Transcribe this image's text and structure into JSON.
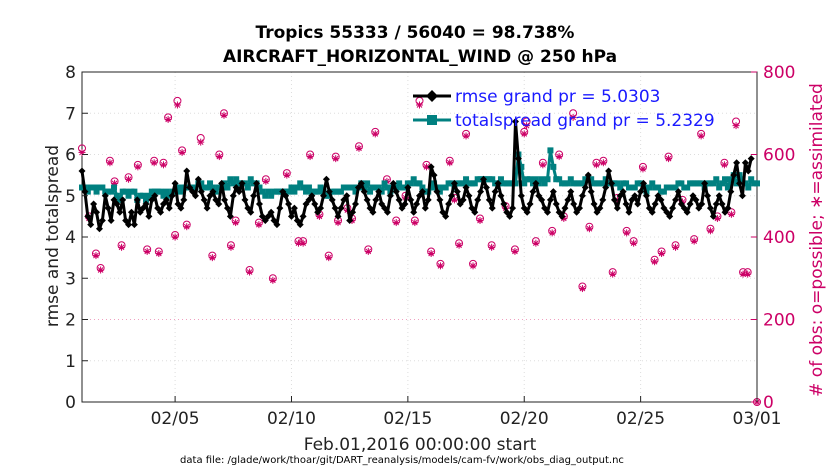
{
  "chart_data": {
    "type": "line",
    "title": "Tropics 55333 / 56040 = 98.738%",
    "subtitle": "AIRCRAFT_HORIZONTAL_WIND @ 250 hPa",
    "xlabel": "Feb.01,2016 00:00:00 start",
    "ylabel_left": "rmse and totalspread",
    "ylabel_right": "# of obs: o=possible; ∗=assimilated",
    "footer": "data file: /glade/work/thoar/git/DART_reanalysis/models/cam-fv/work/obs_diag_output.nc",
    "x_range_days": [
      1,
      30
    ],
    "xticks": [
      {
        "day": 5,
        "label": "02/05"
      },
      {
        "day": 10,
        "label": "02/10"
      },
      {
        "day": 15,
        "label": "02/15"
      },
      {
        "day": 20,
        "label": "02/20"
      },
      {
        "day": 25,
        "label": "02/25"
      },
      {
        "day": 30,
        "label": "03/01"
      }
    ],
    "ylim_left": [
      0,
      8
    ],
    "yticks_left": [
      "0",
      "1",
      "2",
      "3",
      "4",
      "5",
      "6",
      "7",
      "8"
    ],
    "ylim_right": [
      0,
      800
    ],
    "yticks_right": [
      "0",
      "200",
      "400",
      "600",
      "800"
    ],
    "grid": true,
    "legend": [
      {
        "label": "rmse grand pr = 5.0303",
        "color": "#000000",
        "marker": "diamond"
      },
      {
        "label": "totalspread grand pr = 5.2329",
        "color": "#008080",
        "marker": "square"
      }
    ],
    "series": [
      {
        "name": "rmse",
        "color": "#000000",
        "axis": "left",
        "x_start": 1,
        "step": 0.125,
        "values": [
          5.6,
          5.1,
          4.5,
          4.3,
          4.8,
          4.6,
          4.2,
          4.4,
          5.0,
          4.7,
          4.4,
          4.9,
          4.8,
          4.6,
          4.9,
          4.4,
          4.3,
          4.6,
          4.3,
          4.9,
          4.6,
          4.7,
          4.8,
          4.5,
          4.9,
          5.0,
          4.7,
          4.6,
          4.8,
          4.9,
          4.7,
          5.0,
          5.3,
          4.8,
          4.7,
          4.9,
          5.6,
          5.2,
          5.1,
          5.0,
          5.4,
          5.1,
          4.9,
          4.7,
          5.0,
          5.1,
          4.9,
          4.8,
          5.3,
          4.9,
          4.7,
          4.5,
          5.0,
          5.2,
          5.1,
          5.3,
          4.9,
          4.7,
          4.6,
          5.0,
          5.3,
          4.8,
          4.5,
          4.4,
          4.5,
          4.6,
          4.4,
          4.3,
          4.7,
          5.1,
          5.0,
          4.8,
          4.5,
          4.7,
          4.4,
          4.3,
          4.5,
          4.8,
          4.9,
          5.0,
          4.8,
          4.6,
          4.7,
          5.0,
          5.4,
          5.1,
          4.9,
          4.7,
          4.5,
          4.7,
          4.9,
          5.0,
          4.4,
          4.6,
          4.8,
          5.2,
          5.3,
          5.1,
          4.9,
          4.7,
          4.6,
          4.9,
          5.1,
          4.8,
          4.7,
          4.6,
          5.0,
          5.3,
          5.1,
          4.9,
          4.7,
          4.8,
          5.2,
          4.9,
          4.6,
          4.8,
          5.0,
          5.1,
          4.7,
          4.9,
          5.7,
          5.5,
          5.1,
          4.9,
          4.6,
          4.5,
          4.8,
          5.0,
          5.3,
          5.1,
          4.8,
          4.9,
          5.2,
          5.0,
          4.7,
          4.6,
          4.9,
          5.1,
          5.4,
          5.2,
          4.9,
          4.7,
          5.1,
          5.3,
          5.0,
          4.8,
          4.6,
          4.5,
          4.7,
          6.8,
          5.9,
          5.0,
          4.7,
          4.6,
          4.8,
          5.1,
          5.3,
          5.0,
          4.9,
          4.7,
          4.6,
          4.9,
          5.1,
          4.8,
          4.6,
          4.5,
          4.7,
          4.9,
          5.1,
          4.8,
          4.6,
          4.7,
          5.0,
          5.2,
          5.5,
          5.1,
          4.8,
          4.6,
          4.7,
          4.9,
          5.2,
          5.6,
          5.3,
          4.9,
          4.7,
          5.0,
          5.1,
          4.8,
          4.6,
          4.9,
          5.0,
          4.8,
          5.1,
          5.3,
          5.0,
          4.7,
          4.6,
          4.8,
          5.0,
          4.9,
          4.7,
          4.6,
          4.5,
          4.7,
          4.9,
          5.1,
          4.8,
          4.7,
          4.6,
          4.8,
          5.0,
          4.9,
          4.7,
          4.8,
          5.3,
          5.0,
          4.7,
          4.5,
          4.8,
          5.0,
          4.8,
          4.6,
          4.7,
          5.1,
          5.5,
          5.8,
          5.3,
          5.0,
          5.8,
          5.6,
          5.9
        ]
      },
      {
        "name": "totalspread",
        "color": "#008080",
        "axis": "left",
        "x_start": 1,
        "step": 0.125,
        "values": [
          5.2,
          5.2,
          5.1,
          5.2,
          5.2,
          5.1,
          5.2,
          5.2,
          5.1,
          5.1,
          5.1,
          5.2,
          5.0,
          4.9,
          5.1,
          5.1,
          5.0,
          5.1,
          5.1,
          4.9,
          5.0,
          5.0,
          4.9,
          5.0,
          5.1,
          5.1,
          5.1,
          5.1,
          5.0,
          5.1,
          5.0,
          5.1,
          5.1,
          5.2,
          5.1,
          5.2,
          5.2,
          5.2,
          5.2,
          5.2,
          5.3,
          5.3,
          5.2,
          5.2,
          5.3,
          5.2,
          5.1,
          5.2,
          5.2,
          5.3,
          5.2,
          5.4,
          5.3,
          5.4,
          5.3,
          5.3,
          5.3,
          5.2,
          5.4,
          5.3,
          5.3,
          5.2,
          5.1,
          5.0,
          5.1,
          5.0,
          5.1,
          5.1,
          5.1,
          5.1,
          5.1,
          5.1,
          5.2,
          5.1,
          5.2,
          5.3,
          5.2,
          5.1,
          5.2,
          5.1,
          5.1,
          5.1,
          5.2,
          5.1,
          5.0,
          5.0,
          5.1,
          5.1,
          5.1,
          5.1,
          5.2,
          5.2,
          5.2,
          5.2,
          5.1,
          5.2,
          5.3,
          5.2,
          5.3,
          5.1,
          5.2,
          5.2,
          5.2,
          5.1,
          5.3,
          5.2,
          5.1,
          5.2,
          5.2,
          5.3,
          5.2,
          5.2,
          5.3,
          5.3,
          5.4,
          5.3,
          5.3,
          5.2,
          5.1,
          5.1,
          5.2,
          5.3,
          5.2,
          5.1,
          5.2,
          5.2,
          5.3,
          5.3,
          5.2,
          5.3,
          5.3,
          5.3,
          5.4,
          5.3,
          5.3,
          5.3,
          5.4,
          5.4,
          5.4,
          5.4,
          5.4,
          5.4,
          5.3,
          5.3,
          5.4,
          5.3,
          5.3,
          5.3,
          5.3,
          5.3,
          6.0,
          5.7,
          5.3,
          5.4,
          5.4,
          5.3,
          5.4,
          5.3,
          5.4,
          5.3,
          5.4,
          6.1,
          5.7,
          5.4,
          5.4,
          5.3,
          5.3,
          5.3,
          5.4,
          5.3,
          5.3,
          5.3,
          5.3,
          5.4,
          5.4,
          5.4,
          5.3,
          5.3,
          5.3,
          5.3,
          5.4,
          5.3,
          5.3,
          5.3,
          5.3,
          5.2,
          5.3,
          5.3,
          5.2,
          5.2,
          5.2,
          5.3,
          5.3,
          5.2,
          5.1,
          5.2,
          5.3,
          5.2,
          5.2,
          5.1,
          5.1,
          5.2,
          5.2,
          5.2,
          5.2,
          5.3,
          5.3,
          5.2,
          5.2,
          5.3,
          5.3,
          5.3,
          5.3,
          5.3,
          5.2,
          5.3,
          5.3,
          5.3,
          5.4,
          5.2,
          5.3,
          5.4,
          5.2,
          5.4,
          5.5,
          5.3,
          5.5,
          5.4,
          5.3,
          5.2,
          5.4,
          5.3,
          5.3
        ]
      },
      {
        "name": "obs_possible",
        "color": "#cc0066",
        "axis": "right",
        "marker": "o",
        "points": [
          [
            1.0,
            615
          ],
          [
            1.3,
            450
          ],
          [
            1.6,
            360
          ],
          [
            1.8,
            325
          ],
          [
            2.2,
            585
          ],
          [
            2.4,
            535
          ],
          [
            2.7,
            380
          ],
          [
            3.0,
            545
          ],
          [
            3.4,
            575
          ],
          [
            3.8,
            370
          ],
          [
            4.1,
            585
          ],
          [
            4.3,
            365
          ],
          [
            4.5,
            580
          ],
          [
            4.7,
            690
          ],
          [
            5.0,
            405
          ],
          [
            5.1,
            730
          ],
          [
            5.3,
            610
          ],
          [
            5.5,
            430
          ],
          [
            6.1,
            640
          ],
          [
            6.6,
            355
          ],
          [
            6.9,
            600
          ],
          [
            7.1,
            700
          ],
          [
            7.4,
            380
          ],
          [
            7.6,
            440
          ],
          [
            8.2,
            320
          ],
          [
            8.6,
            435
          ],
          [
            8.9,
            540
          ],
          [
            9.2,
            300
          ],
          [
            9.8,
            555
          ],
          [
            10.3,
            390
          ],
          [
            10.5,
            390
          ],
          [
            10.8,
            600
          ],
          [
            11.2,
            455
          ],
          [
            11.6,
            355
          ],
          [
            11.9,
            595
          ],
          [
            12.0,
            440
          ],
          [
            12.4,
            470
          ],
          [
            12.6,
            445
          ],
          [
            12.9,
            620
          ],
          [
            13.3,
            370
          ],
          [
            13.6,
            655
          ],
          [
            14.1,
            540
          ],
          [
            14.5,
            440
          ],
          [
            14.9,
            500
          ],
          [
            15.3,
            440
          ],
          [
            15.5,
            730
          ],
          [
            15.8,
            575
          ],
          [
            16.0,
            365
          ],
          [
            16.4,
            335
          ],
          [
            16.8,
            585
          ],
          [
            17.0,
            495
          ],
          [
            17.2,
            385
          ],
          [
            17.5,
            650
          ],
          [
            17.8,
            335
          ],
          [
            18.1,
            445
          ],
          [
            18.6,
            380
          ],
          [
            19.2,
            475
          ],
          [
            19.6,
            370
          ],
          [
            20.0,
            655
          ],
          [
            20.1,
            680
          ],
          [
            20.5,
            390
          ],
          [
            20.8,
            580
          ],
          [
            21.2,
            415
          ],
          [
            21.5,
            600
          ],
          [
            21.7,
            450
          ],
          [
            22.1,
            700
          ],
          [
            22.5,
            280
          ],
          [
            22.8,
            425
          ],
          [
            23.1,
            580
          ],
          [
            23.4,
            585
          ],
          [
            23.8,
            315
          ],
          [
            24.0,
            495
          ],
          [
            24.4,
            415
          ],
          [
            24.7,
            390
          ],
          [
            25.1,
            570
          ],
          [
            25.6,
            345
          ],
          [
            25.9,
            365
          ],
          [
            26.2,
            595
          ],
          [
            26.5,
            380
          ],
          [
            26.8,
            490
          ],
          [
            27.3,
            395
          ],
          [
            27.6,
            650
          ],
          [
            28.0,
            420
          ],
          [
            28.3,
            450
          ],
          [
            28.6,
            580
          ],
          [
            28.9,
            460
          ],
          [
            29.1,
            680
          ],
          [
            29.4,
            315
          ],
          [
            29.6,
            315
          ],
          [
            30.0,
            0
          ]
        ]
      },
      {
        "name": "obs_assimilated",
        "color": "#cc0066",
        "axis": "right",
        "marker": "*",
        "points": [
          [
            1.0,
            605
          ],
          [
            1.3,
            445
          ],
          [
            1.6,
            355
          ],
          [
            1.8,
            320
          ],
          [
            2.2,
            580
          ],
          [
            2.4,
            530
          ],
          [
            2.7,
            375
          ],
          [
            3.0,
            540
          ],
          [
            3.4,
            570
          ],
          [
            3.8,
            365
          ],
          [
            4.1,
            580
          ],
          [
            4.3,
            360
          ],
          [
            4.5,
            575
          ],
          [
            4.7,
            685
          ],
          [
            5.0,
            400
          ],
          [
            5.1,
            720
          ],
          [
            5.3,
            605
          ],
          [
            5.5,
            425
          ],
          [
            6.1,
            630
          ],
          [
            6.6,
            350
          ],
          [
            6.9,
            595
          ],
          [
            7.1,
            695
          ],
          [
            7.4,
            375
          ],
          [
            7.6,
            435
          ],
          [
            8.2,
            315
          ],
          [
            8.6,
            430
          ],
          [
            8.9,
            535
          ],
          [
            9.2,
            295
          ],
          [
            9.8,
            550
          ],
          [
            10.3,
            385
          ],
          [
            10.5,
            385
          ],
          [
            10.8,
            595
          ],
          [
            11.2,
            450
          ],
          [
            11.6,
            350
          ],
          [
            11.9,
            590
          ],
          [
            12.0,
            435
          ],
          [
            12.4,
            465
          ],
          [
            12.6,
            440
          ],
          [
            12.9,
            615
          ],
          [
            13.3,
            365
          ],
          [
            13.6,
            650
          ],
          [
            14.1,
            535
          ],
          [
            14.5,
            435
          ],
          [
            14.9,
            495
          ],
          [
            15.3,
            435
          ],
          [
            15.5,
            720
          ],
          [
            15.8,
            570
          ],
          [
            16.0,
            360
          ],
          [
            16.4,
            330
          ],
          [
            16.8,
            580
          ],
          [
            17.0,
            490
          ],
          [
            17.2,
            380
          ],
          [
            17.5,
            645
          ],
          [
            17.8,
            330
          ],
          [
            18.1,
            440
          ],
          [
            18.6,
            375
          ],
          [
            19.2,
            470
          ],
          [
            19.6,
            365
          ],
          [
            20.0,
            650
          ],
          [
            20.1,
            670
          ],
          [
            20.5,
            385
          ],
          [
            20.8,
            575
          ],
          [
            21.2,
            410
          ],
          [
            21.5,
            595
          ],
          [
            21.7,
            445
          ],
          [
            22.1,
            690
          ],
          [
            22.5,
            275
          ],
          [
            22.8,
            420
          ],
          [
            23.1,
            575
          ],
          [
            23.4,
            580
          ],
          [
            23.8,
            310
          ],
          [
            24.0,
            490
          ],
          [
            24.4,
            410
          ],
          [
            24.7,
            385
          ],
          [
            25.1,
            565
          ],
          [
            25.6,
            340
          ],
          [
            25.9,
            360
          ],
          [
            26.2,
            590
          ],
          [
            26.5,
            375
          ],
          [
            26.8,
            485
          ],
          [
            27.3,
            390
          ],
          [
            27.6,
            645
          ],
          [
            28.0,
            415
          ],
          [
            28.3,
            445
          ],
          [
            28.6,
            575
          ],
          [
            28.9,
            455
          ],
          [
            29.1,
            670
          ],
          [
            29.4,
            310
          ],
          [
            29.6,
            310
          ],
          [
            30.0,
            0
          ]
        ]
      }
    ]
  }
}
